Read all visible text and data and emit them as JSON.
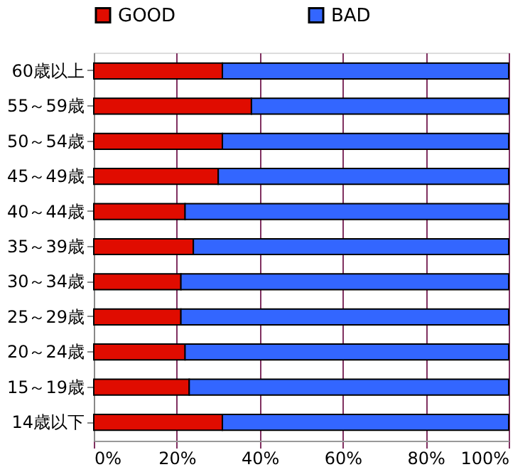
{
  "chart_data": {
    "type": "bar",
    "orientation": "horizontal",
    "stacked": true,
    "categories": [
      "60歳以上",
      "55～59歳",
      "50～54歳",
      "45～49歳",
      "40～44歳",
      "35～39歳",
      "30～34歳",
      "25～29歳",
      "20～24歳",
      "15～19歳",
      "14歳以下"
    ],
    "series": [
      {
        "name": "GOOD",
        "color": "#e00c00",
        "values": [
          31,
          38,
          31,
          30,
          22,
          24,
          21,
          21,
          22,
          23,
          31
        ]
      },
      {
        "name": "BAD",
        "color": "#3366ff",
        "values": [
          69,
          62,
          69,
          70,
          78,
          76,
          79,
          79,
          78,
          77,
          69
        ]
      }
    ],
    "xlim": [
      0,
      100
    ],
    "xticks": [
      {
        "value": 0,
        "label": "0%"
      },
      {
        "value": 20,
        "label": "20%"
      },
      {
        "value": 40,
        "label": "40%"
      },
      {
        "value": 60,
        "label": "60%"
      },
      {
        "value": 80,
        "label": "80%"
      },
      {
        "value": 100,
        "label": "100%"
      }
    ],
    "grid": "x",
    "legend": "top"
  }
}
